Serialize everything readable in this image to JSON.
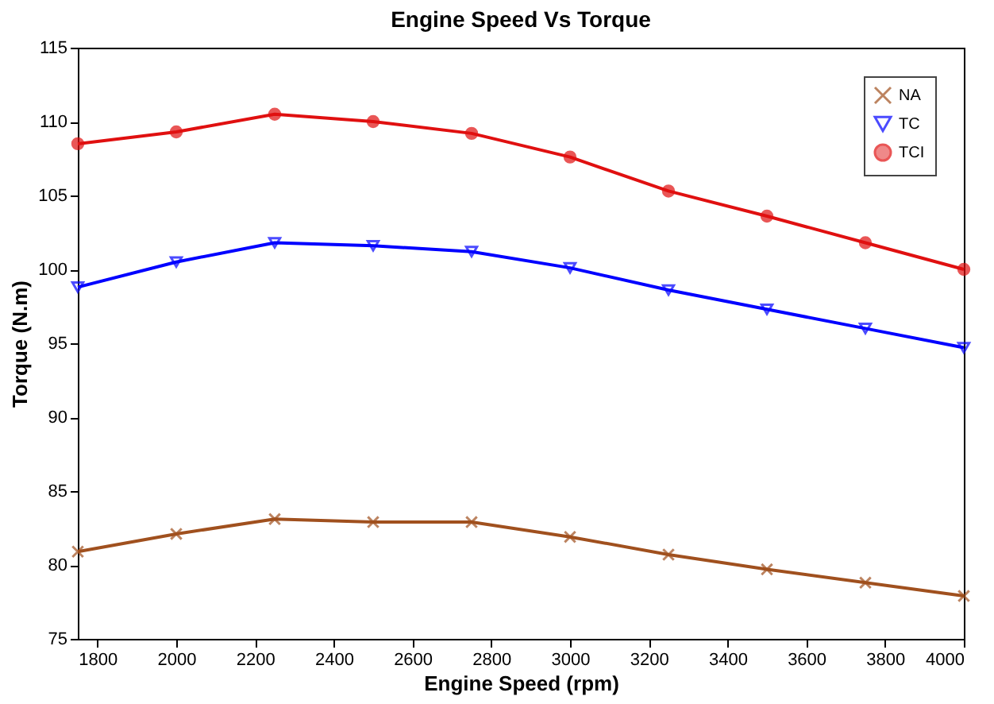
{
  "chart_data": {
    "type": "line",
    "title": "Engine Speed Vs Torque",
    "xlabel": "Engine Speed (rpm)",
    "ylabel": "Torque (N.m)",
    "x": [
      1750,
      2000,
      2250,
      2500,
      2750,
      3000,
      3250,
      3500,
      3750,
      4000
    ],
    "series": [
      {
        "name": "NA",
        "color": "#a0501e",
        "marker": "cross",
        "values": [
          80.9,
          82.1,
          83.1,
          82.9,
          82.9,
          81.9,
          80.7,
          79.7,
          78.8,
          77.9
        ]
      },
      {
        "name": "TC",
        "color": "#0000ff",
        "marker": "triangle",
        "values": [
          98.8,
          100.5,
          101.8,
          101.6,
          101.2,
          100.1,
          98.6,
          97.3,
          96.0,
          94.7
        ]
      },
      {
        "name": "TCI",
        "color": "#e01010",
        "marker": "circle",
        "values": [
          108.5,
          109.3,
          110.5,
          110.0,
          109.2,
          107.6,
          105.3,
          103.6,
          101.8,
          100.0
        ]
      }
    ],
    "xlim": [
      1750,
      4000
    ],
    "xticks": [
      1800,
      2000,
      2200,
      2400,
      2600,
      2800,
      3000,
      3200,
      3400,
      3600,
      3800,
      4000
    ],
    "ylim": [
      75,
      115
    ],
    "yticks": [
      75,
      80,
      85,
      90,
      95,
      100,
      105,
      110,
      115
    ],
    "grid": false,
    "legend": "top right",
    "line_style": "solid"
  }
}
